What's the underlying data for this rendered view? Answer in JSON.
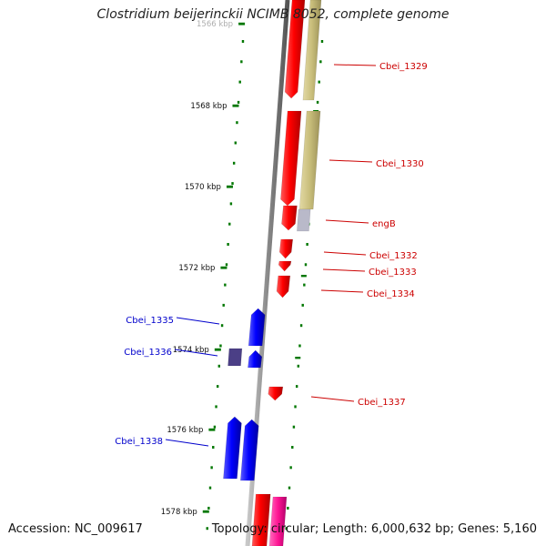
{
  "title": "Clostridium beijerinckii NCIMB 8052, complete genome",
  "footer": {
    "accession": "Accession: NC_009617",
    "topology": "Topology: circular; Length: 6,000,632 bp; Genes: 5,160"
  },
  "axis": {
    "unit": "kbp",
    "ticks": [
      "1566 kbp",
      "1568 kbp",
      "1570 kbp",
      "1572 kbp",
      "1574 kbp",
      "1576 kbp",
      "1578 kbp"
    ]
  },
  "colors": {
    "forward_strand": "#ff0000",
    "reverse_strand": "#0000ff",
    "forward_label": "#cc0000",
    "reverse_label": "#0000cc",
    "cds_track": "#c8bd7a",
    "rna_track": "#ff1493",
    "tick_marks": "#007700",
    "backbone": "#8a8a8a"
  },
  "genes": [
    {
      "label": "Cbei_1329",
      "strand": "forward"
    },
    {
      "label": "Cbei_1330",
      "strand": "forward"
    },
    {
      "label": "engB",
      "strand": "forward"
    },
    {
      "label": "Cbei_1332",
      "strand": "forward"
    },
    {
      "label": "Cbei_1333",
      "strand": "forward"
    },
    {
      "label": "Cbei_1334",
      "strand": "forward"
    },
    {
      "label": "Cbei_1335",
      "strand": "reverse"
    },
    {
      "label": "Cbei_1336",
      "strand": "reverse"
    },
    {
      "label": "Cbei_1337",
      "strand": "forward"
    },
    {
      "label": "Cbei_1338",
      "strand": "reverse"
    }
  ]
}
